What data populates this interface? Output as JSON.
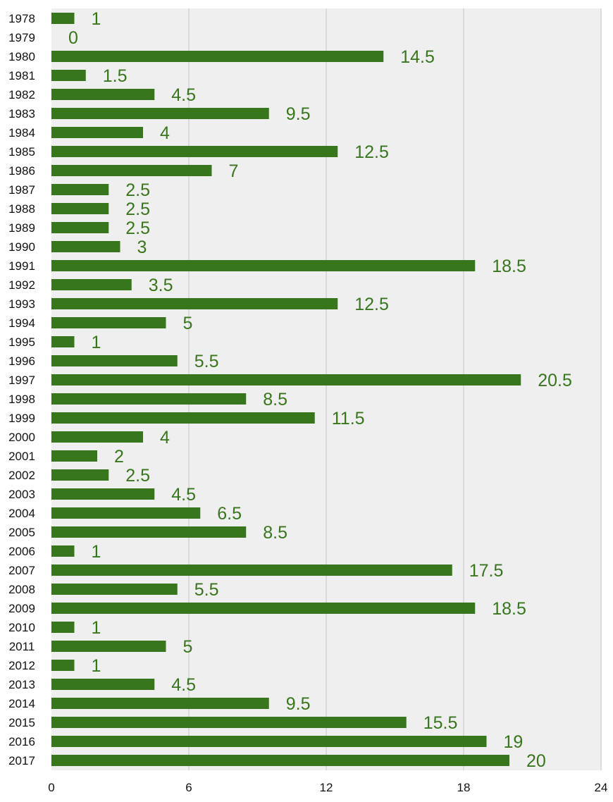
{
  "chart_data": {
    "type": "bar",
    "orientation": "horizontal",
    "categories": [
      "1978",
      "1979",
      "1980",
      "1981",
      "1982",
      "1983",
      "1984",
      "1985",
      "1986",
      "1987",
      "1988",
      "1989",
      "1990",
      "1991",
      "1992",
      "1993",
      "1994",
      "1995",
      "1996",
      "1997",
      "1998",
      "1999",
      "2000",
      "2001",
      "2002",
      "2003",
      "2004",
      "2005",
      "2006",
      "2007",
      "2008",
      "2009",
      "2010",
      "2011",
      "2012",
      "2013",
      "2014",
      "2015",
      "2016",
      "2017"
    ],
    "values": [
      1,
      0,
      14.5,
      1.5,
      4.5,
      9.5,
      4,
      12.5,
      7,
      2.5,
      2.5,
      2.5,
      3,
      18.5,
      3.5,
      12.5,
      5,
      1,
      5.5,
      20.5,
      8.5,
      11.5,
      4,
      2,
      2.5,
      4.5,
      6.5,
      8.5,
      1,
      17.5,
      5.5,
      18.5,
      1,
      5,
      1,
      4.5,
      9.5,
      15.5,
      19,
      20
    ],
    "xlim": [
      0,
      24
    ],
    "xticks": [
      0,
      6,
      12,
      18,
      24
    ],
    "grid": true,
    "data_labels": true
  },
  "colors": {
    "bar": "#38761d",
    "label": "#38761d",
    "plot_background": "#efefef",
    "grid": "#cccccc"
  }
}
